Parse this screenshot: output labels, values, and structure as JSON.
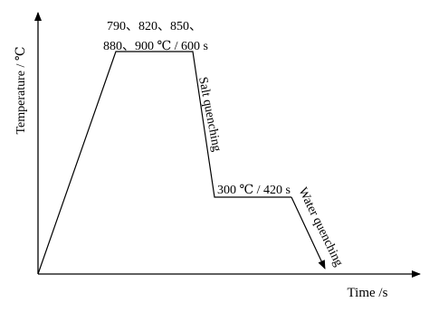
{
  "axes": {
    "y_label": "Temperature / ℃",
    "x_label": "Time /s"
  },
  "annotations": {
    "austenitize_line1": "790、820、850、",
    "austenitize_line2": "880、900 ℃ / 600 s",
    "salt_quench": "Salt quenching",
    "isothermal": "300 ℃ / 420 s",
    "water_quench": "Water quenching"
  }
}
